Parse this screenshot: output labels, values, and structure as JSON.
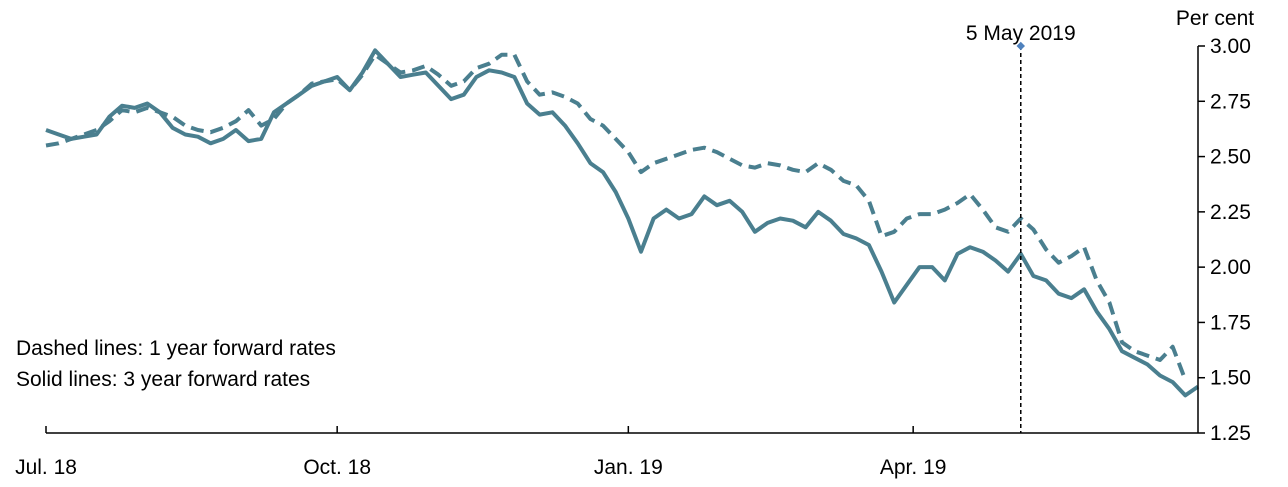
{
  "chart_data": {
    "type": "line",
    "title": "",
    "xlabel": "",
    "ylabel": "Per cent",
    "ylim": [
      1.25,
      3.0
    ],
    "y_ticks": [
      "3.00",
      "2.75",
      "2.50",
      "2.25",
      "2.00",
      "1.75",
      "1.50",
      "1.25"
    ],
    "y_axis_position": "right",
    "x_range": [
      "2018-07-01",
      "2019-06-30"
    ],
    "x_ticks": [
      {
        "date": "2018-07-01",
        "label": "Jul. 18"
      },
      {
        "date": "2018-10-01",
        "label": "Oct. 18"
      },
      {
        "date": "2019-01-01",
        "label": "Jan. 19"
      },
      {
        "date": "2019-04-01",
        "label": "Apr. 19"
      }
    ],
    "grid": false,
    "line_color": "#4a7f8f",
    "annotations": [
      {
        "type": "vertical-line",
        "date": "2019-05-05",
        "label": "5 May 2019",
        "style": "dashed",
        "marker_color": "#4f81bd"
      }
    ],
    "notes": [
      "Dashed lines:  1 year forward rates",
      "Solid lines: 3 year forward rates"
    ],
    "series": [
      {
        "style": "dashed",
        "points": [
          [
            "2018-07-01",
            2.55
          ],
          [
            "2018-07-05",
            2.56
          ],
          [
            "2018-07-09",
            2.58
          ],
          [
            "2018-07-13",
            2.6
          ],
          [
            "2018-07-17",
            2.62
          ],
          [
            "2018-07-21",
            2.66
          ],
          [
            "2018-07-25",
            2.71
          ],
          [
            "2018-07-29",
            2.7
          ],
          [
            "2018-08-02",
            2.72
          ],
          [
            "2018-08-06",
            2.7
          ],
          [
            "2018-08-10",
            2.68
          ],
          [
            "2018-08-14",
            2.64
          ],
          [
            "2018-08-18",
            2.62
          ],
          [
            "2018-08-22",
            2.61
          ],
          [
            "2018-08-26",
            2.63
          ],
          [
            "2018-08-30",
            2.66
          ],
          [
            "2018-09-03",
            2.71
          ],
          [
            "2018-09-07",
            2.64
          ],
          [
            "2018-09-11",
            2.67
          ],
          [
            "2018-09-15",
            2.74
          ],
          [
            "2018-09-19",
            2.78
          ],
          [
            "2018-09-23",
            2.83
          ],
          [
            "2018-09-27",
            2.84
          ],
          [
            "2018-10-01",
            2.85
          ],
          [
            "2018-10-05",
            2.8
          ],
          [
            "2018-10-09",
            2.87
          ],
          [
            "2018-10-13",
            2.96
          ],
          [
            "2018-10-17",
            2.92
          ],
          [
            "2018-10-21",
            2.88
          ],
          [
            "2018-10-25",
            2.89
          ],
          [
            "2018-10-29",
            2.91
          ],
          [
            "2018-11-02",
            2.87
          ],
          [
            "2018-11-06",
            2.82
          ],
          [
            "2018-11-10",
            2.84
          ],
          [
            "2018-11-14",
            2.9
          ],
          [
            "2018-11-18",
            2.92
          ],
          [
            "2018-11-22",
            2.96
          ],
          [
            "2018-11-26",
            2.96
          ],
          [
            "2018-11-30",
            2.84
          ],
          [
            "2018-12-04",
            2.78
          ],
          [
            "2018-12-08",
            2.79
          ],
          [
            "2018-12-12",
            2.77
          ],
          [
            "2018-12-16",
            2.74
          ],
          [
            "2018-12-20",
            2.67
          ],
          [
            "2018-12-24",
            2.64
          ],
          [
            "2018-12-28",
            2.58
          ],
          [
            "2019-01-01",
            2.52
          ],
          [
            "2019-01-05",
            2.43
          ],
          [
            "2019-01-09",
            2.47
          ],
          [
            "2019-01-13",
            2.49
          ],
          [
            "2019-01-17",
            2.51
          ],
          [
            "2019-01-21",
            2.53
          ],
          [
            "2019-01-25",
            2.54
          ],
          [
            "2019-01-29",
            2.52
          ],
          [
            "2019-02-02",
            2.49
          ],
          [
            "2019-02-06",
            2.46
          ],
          [
            "2019-02-10",
            2.45
          ],
          [
            "2019-02-14",
            2.47
          ],
          [
            "2019-02-18",
            2.46
          ],
          [
            "2019-02-22",
            2.44
          ],
          [
            "2019-02-26",
            2.43
          ],
          [
            "2019-03-02",
            2.47
          ],
          [
            "2019-03-06",
            2.44
          ],
          [
            "2019-03-10",
            2.39
          ],
          [
            "2019-03-14",
            2.37
          ],
          [
            "2019-03-18",
            2.3
          ],
          [
            "2019-03-22",
            2.14
          ],
          [
            "2019-03-26",
            2.16
          ],
          [
            "2019-03-30",
            2.22
          ],
          [
            "2019-04-03",
            2.24
          ],
          [
            "2019-04-07",
            2.24
          ],
          [
            "2019-04-11",
            2.26
          ],
          [
            "2019-04-15",
            2.29
          ],
          [
            "2019-04-19",
            2.33
          ],
          [
            "2019-04-23",
            2.26
          ],
          [
            "2019-04-27",
            2.18
          ],
          [
            "2019-05-01",
            2.16
          ],
          [
            "2019-05-05",
            2.22
          ],
          [
            "2019-05-09",
            2.17
          ],
          [
            "2019-05-13",
            2.08
          ],
          [
            "2019-05-17",
            2.02
          ],
          [
            "2019-05-21",
            2.05
          ],
          [
            "2019-05-25",
            2.09
          ],
          [
            "2019-05-29",
            1.94
          ],
          [
            "2019-06-02",
            1.84
          ],
          [
            "2019-06-06",
            1.66
          ],
          [
            "2019-06-10",
            1.62
          ],
          [
            "2019-06-14",
            1.6
          ],
          [
            "2019-06-18",
            1.58
          ],
          [
            "2019-06-22",
            1.64
          ],
          [
            "2019-06-26",
            1.49
          ]
        ]
      },
      {
        "style": "solid",
        "points": [
          [
            "2018-07-01",
            2.62
          ],
          [
            "2018-07-05",
            2.6
          ],
          [
            "2018-07-09",
            2.58
          ],
          [
            "2018-07-13",
            2.59
          ],
          [
            "2018-07-17",
            2.6
          ],
          [
            "2018-07-21",
            2.68
          ],
          [
            "2018-07-25",
            2.73
          ],
          [
            "2018-07-29",
            2.72
          ],
          [
            "2018-08-02",
            2.74
          ],
          [
            "2018-08-06",
            2.7
          ],
          [
            "2018-08-10",
            2.63
          ],
          [
            "2018-08-14",
            2.6
          ],
          [
            "2018-08-18",
            2.59
          ],
          [
            "2018-08-22",
            2.56
          ],
          [
            "2018-08-26",
            2.58
          ],
          [
            "2018-08-30",
            2.62
          ],
          [
            "2018-09-03",
            2.57
          ],
          [
            "2018-09-07",
            2.58
          ],
          [
            "2018-09-11",
            2.7
          ],
          [
            "2018-09-15",
            2.74
          ],
          [
            "2018-09-19",
            2.78
          ],
          [
            "2018-09-23",
            2.82
          ],
          [
            "2018-09-27",
            2.84
          ],
          [
            "2018-10-01",
            2.86
          ],
          [
            "2018-10-05",
            2.8
          ],
          [
            "2018-10-09",
            2.88
          ],
          [
            "2018-10-13",
            2.98
          ],
          [
            "2018-10-17",
            2.92
          ],
          [
            "2018-10-21",
            2.86
          ],
          [
            "2018-10-25",
            2.87
          ],
          [
            "2018-10-29",
            2.88
          ],
          [
            "2018-11-02",
            2.82
          ],
          [
            "2018-11-06",
            2.76
          ],
          [
            "2018-11-10",
            2.78
          ],
          [
            "2018-11-14",
            2.86
          ],
          [
            "2018-11-18",
            2.89
          ],
          [
            "2018-11-22",
            2.88
          ],
          [
            "2018-11-26",
            2.86
          ],
          [
            "2018-11-30",
            2.74
          ],
          [
            "2018-12-04",
            2.69
          ],
          [
            "2018-12-08",
            2.7
          ],
          [
            "2018-12-12",
            2.64
          ],
          [
            "2018-12-16",
            2.56
          ],
          [
            "2018-12-20",
            2.47
          ],
          [
            "2018-12-24",
            2.43
          ],
          [
            "2018-12-28",
            2.34
          ],
          [
            "2019-01-01",
            2.22
          ],
          [
            "2019-01-05",
            2.07
          ],
          [
            "2019-01-09",
            2.22
          ],
          [
            "2019-01-13",
            2.26
          ],
          [
            "2019-01-17",
            2.22
          ],
          [
            "2019-01-21",
            2.24
          ],
          [
            "2019-01-25",
            2.32
          ],
          [
            "2019-01-29",
            2.28
          ],
          [
            "2019-02-02",
            2.3
          ],
          [
            "2019-02-06",
            2.25
          ],
          [
            "2019-02-10",
            2.16
          ],
          [
            "2019-02-14",
            2.2
          ],
          [
            "2019-02-18",
            2.22
          ],
          [
            "2019-02-22",
            2.21
          ],
          [
            "2019-02-26",
            2.18
          ],
          [
            "2019-03-02",
            2.25
          ],
          [
            "2019-03-06",
            2.21
          ],
          [
            "2019-03-10",
            2.15
          ],
          [
            "2019-03-14",
            2.13
          ],
          [
            "2019-03-18",
            2.1
          ],
          [
            "2019-03-22",
            1.98
          ],
          [
            "2019-03-26",
            1.84
          ],
          [
            "2019-03-30",
            1.92
          ],
          [
            "2019-04-03",
            2.0
          ],
          [
            "2019-04-07",
            2.0
          ],
          [
            "2019-04-11",
            1.94
          ],
          [
            "2019-04-15",
            2.06
          ],
          [
            "2019-04-19",
            2.09
          ],
          [
            "2019-04-23",
            2.07
          ],
          [
            "2019-04-27",
            2.03
          ],
          [
            "2019-05-01",
            1.98
          ],
          [
            "2019-05-05",
            2.06
          ],
          [
            "2019-05-09",
            1.96
          ],
          [
            "2019-05-13",
            1.94
          ],
          [
            "2019-05-17",
            1.88
          ],
          [
            "2019-05-21",
            1.86
          ],
          [
            "2019-05-25",
            1.9
          ],
          [
            "2019-05-29",
            1.8
          ],
          [
            "2019-06-02",
            1.72
          ],
          [
            "2019-06-06",
            1.62
          ],
          [
            "2019-06-10",
            1.59
          ],
          [
            "2019-06-14",
            1.56
          ],
          [
            "2019-06-18",
            1.51
          ],
          [
            "2019-06-22",
            1.48
          ],
          [
            "2019-06-26",
            1.42
          ],
          [
            "2019-06-30",
            1.46
          ]
        ]
      }
    ]
  }
}
